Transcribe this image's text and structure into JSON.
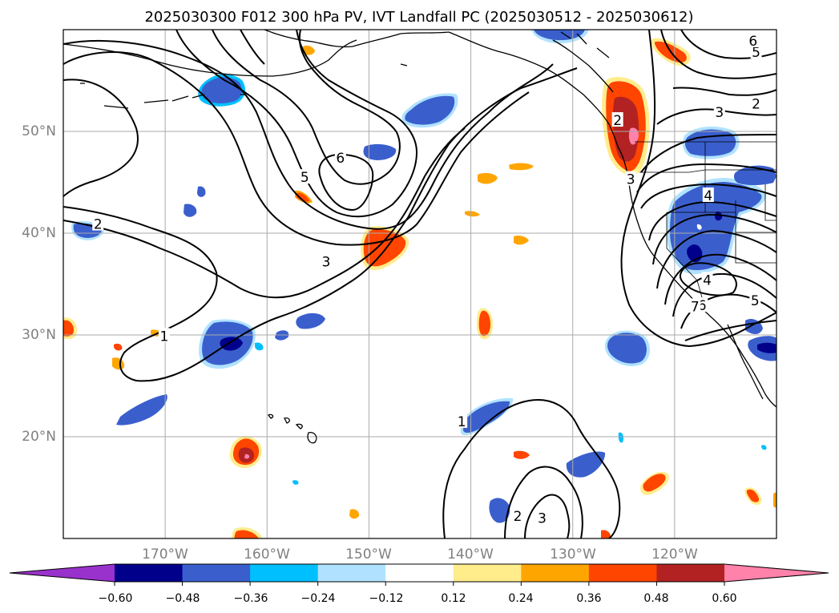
{
  "title": "2025030300 F012 300 hPa PV, IVT Landfall PC (2025030512 - 2025030612)",
  "map": {
    "projection": "PlateCarree",
    "lon_range": [
      -180,
      -110
    ],
    "lat_range": [
      10,
      60
    ],
    "grid": true,
    "lat_ticks": [
      {
        "value": 50,
        "label": "50°N"
      },
      {
        "value": 40,
        "label": "40°N"
      },
      {
        "value": 30,
        "label": "30°N"
      },
      {
        "value": 20,
        "label": "20°N"
      }
    ],
    "lon_ticks": [
      {
        "value": -170,
        "label": "170°W"
      },
      {
        "value": -160,
        "label": "160°W"
      },
      {
        "value": -150,
        "label": "150°W"
      },
      {
        "value": -140,
        "label": "140°W"
      },
      {
        "value": -130,
        "label": "130°W"
      },
      {
        "value": -120,
        "label": "120°W"
      }
    ]
  },
  "contour_labels": [
    {
      "text": "1",
      "lon": -170.1,
      "lat": 29.9
    },
    {
      "text": "2",
      "lon": -176.6,
      "lat": 40.9
    },
    {
      "text": "3",
      "lon": -154.2,
      "lat": 37.2
    },
    {
      "text": "5",
      "lon": -156.3,
      "lat": 45.5
    },
    {
      "text": "6",
      "lon": -152.8,
      "lat": 47.4
    },
    {
      "text": "1",
      "lon": -140.9,
      "lat": 21.5
    },
    {
      "text": "2",
      "lon": -135.4,
      "lat": 12.2
    },
    {
      "text": "3",
      "lon": -133.0,
      "lat": 12.0
    },
    {
      "text": "2",
      "lon": -125.6,
      "lat": 51.1
    },
    {
      "text": "3",
      "lon": -124.3,
      "lat": 45.3
    },
    {
      "text": "4",
      "lon": -116.7,
      "lat": 43.7
    },
    {
      "text": "5",
      "lon": -112.0,
      "lat": 57.8
    },
    {
      "text": "6",
      "lon": -112.3,
      "lat": 58.9
    },
    {
      "text": "2",
      "lon": -112.0,
      "lat": 52.7
    },
    {
      "text": "3",
      "lon": -115.6,
      "lat": 51.9
    },
    {
      "text": "4",
      "lon": -116.8,
      "lat": 35.4
    },
    {
      "text": "6",
      "lon": -117.3,
      "lat": 32.9
    },
    {
      "text": "5",
      "lon": -112.1,
      "lat": 33.4
    },
    {
      "text": "7",
      "lon": -118.0,
      "lat": 32.8
    }
  ],
  "colorbar": {
    "colors": [
      "#9932cc",
      "#00008b",
      "#3a5fcd",
      "#00bfff",
      "#b0e2ff",
      "#ffffff",
      "#ffec8b",
      "#ffa500",
      "#ff4500",
      "#b22222",
      "#ff82ab"
    ],
    "tick_labels": [
      "−0.60",
      "−0.48",
      "−0.36",
      "−0.24",
      "−0.12",
      "0.12",
      "0.24",
      "0.36",
      "0.48",
      "0.60"
    ]
  },
  "style": {
    "negative_colors": [
      "#00008b",
      "#3a5fcd",
      "#00bfff",
      "#b0e2ff"
    ],
    "positive_colors": [
      "#ffec8b",
      "#ffa500",
      "#ff4500",
      "#b22222",
      "#ff82ab"
    ],
    "contour_color": "#000000",
    "grid_color": "#aaaaaa"
  }
}
